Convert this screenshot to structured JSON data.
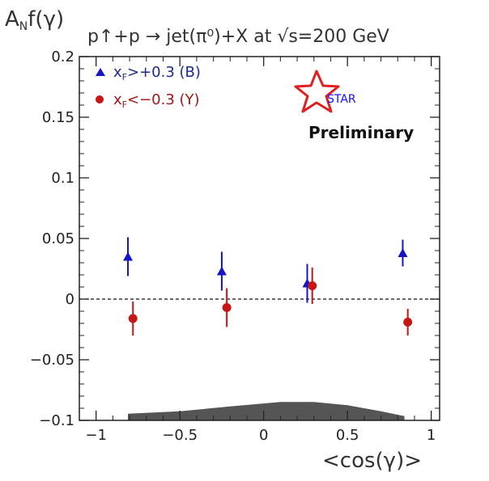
{
  "chart_data": {
    "type": "scatter",
    "title": "p↑+p → jet(π⁰)+X at √s=200 GeV",
    "ylabel": "A_N f(γ)",
    "xlabel": "<cos(γ)>",
    "xlim": [
      -1.1,
      1.05
    ],
    "ylim": [
      -0.1,
      0.2
    ],
    "xticks": [
      -1,
      -0.5,
      0,
      0.5,
      1
    ],
    "xtick_labels": [
      "−1",
      "−0.5",
      "0",
      "0.5",
      "1"
    ],
    "yticks": [
      -0.1,
      -0.05,
      0,
      0.05,
      0.1,
      0.15,
      0.2
    ],
    "ytick_labels": [
      "−0.1",
      "−0.05",
      "0",
      "0.05",
      "0.1",
      "0.15",
      "0.2"
    ],
    "zero_line": true,
    "series": [
      {
        "name": "x_F>+0.3 (B)",
        "marker": "triangle",
        "color": "#1515c8",
        "x": [
          -0.81,
          -0.25,
          0.26,
          0.83
        ],
        "y": [
          0.035,
          0.023,
          0.013,
          0.038
        ],
        "err": [
          0.016,
          0.016,
          0.016,
          0.011
        ]
      },
      {
        "name": "x_F<−0.3 (Y)",
        "marker": "circle",
        "color": "#c81515",
        "x": [
          -0.78,
          -0.22,
          0.29,
          0.86
        ],
        "y": [
          -0.016,
          -0.007,
          0.011,
          -0.019
        ],
        "err": [
          0.014,
          0.016,
          0.015,
          0.011
        ]
      }
    ],
    "systematic_band": {
      "x": [
        -0.81,
        -0.5,
        -0.2,
        0.1,
        0.3,
        0.5,
        0.7,
        0.84
      ],
      "y": [
        -0.0945,
        -0.0925,
        -0.0885,
        -0.0848,
        -0.0848,
        -0.0875,
        -0.0925,
        -0.0965
      ],
      "baseline": -0.1,
      "color": "#555555"
    },
    "legend": [
      {
        "symbol": "x",
        "subscript": "F",
        "text": ">+0.3 (B)",
        "color": "#1f2a8c"
      },
      {
        "symbol": "x",
        "subscript": "F",
        "text": "<−0.3 (Y)",
        "color": "#a01818"
      }
    ],
    "annotations": {
      "logo_text": "STAR",
      "preliminary": "Preliminary"
    }
  }
}
